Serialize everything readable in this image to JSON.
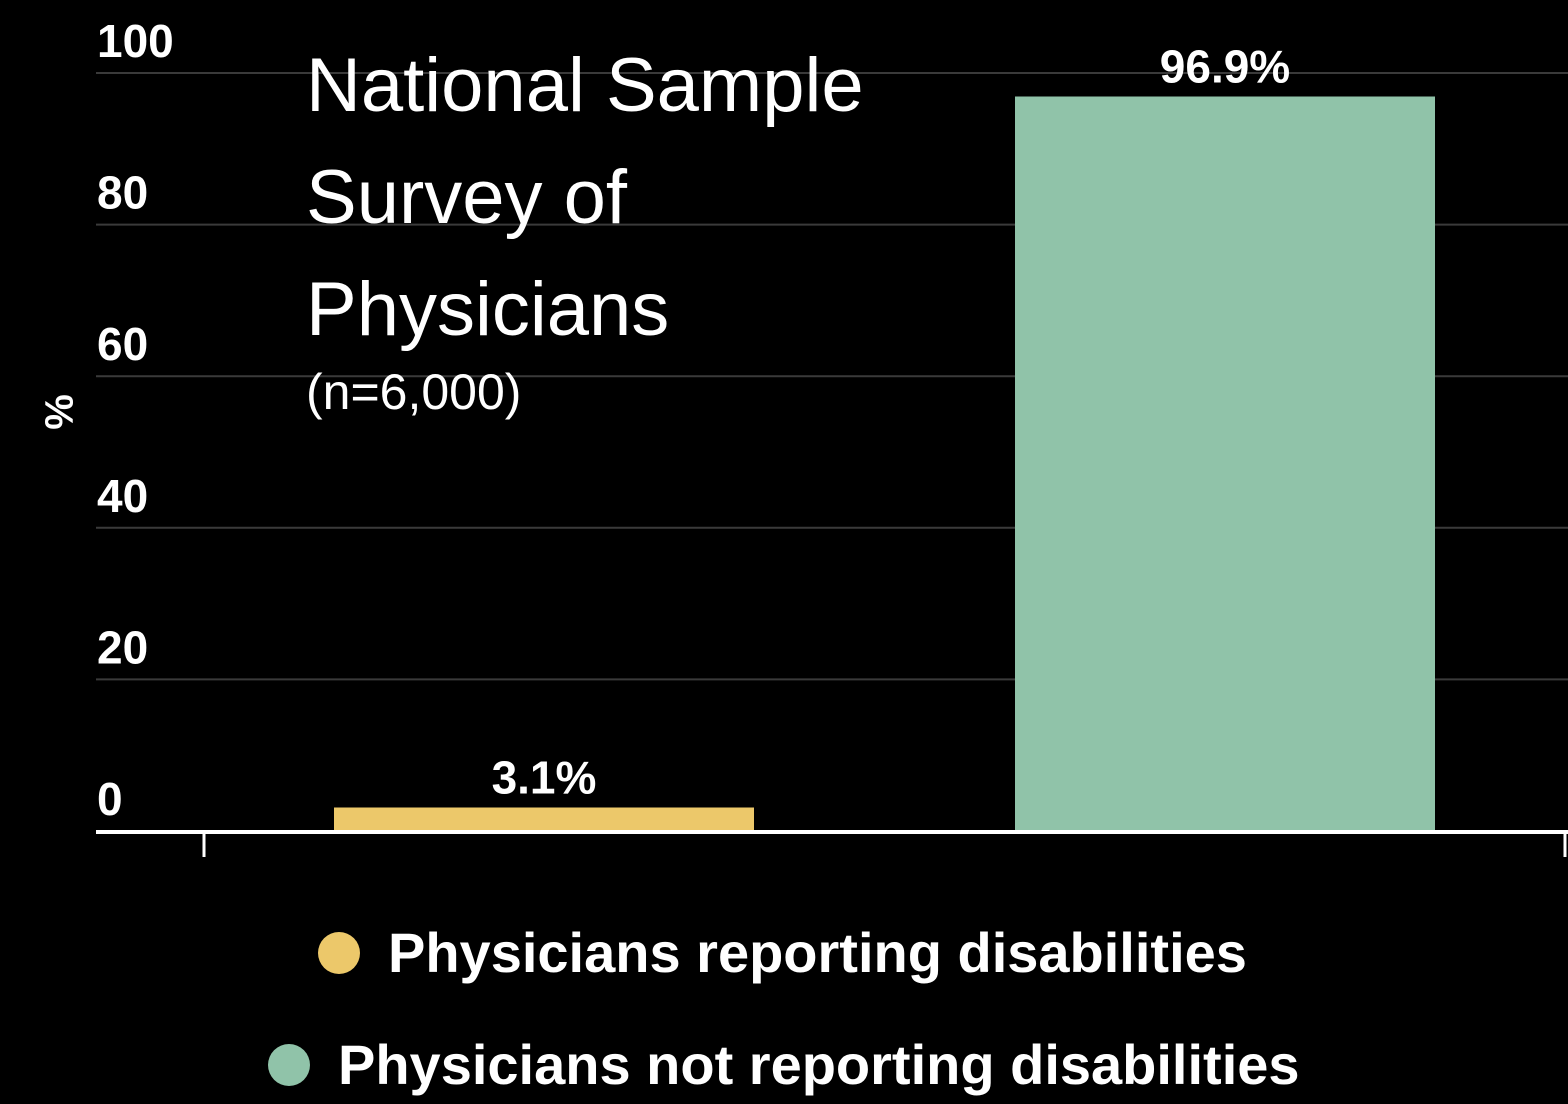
{
  "chart_data": {
    "type": "bar",
    "title_lines": [
      "National Sample",
      "Survey of",
      "Physicians"
    ],
    "subtitle": "(n=6,000)",
    "xlabel": "",
    "ylabel": "%",
    "ylim": [
      0,
      100
    ],
    "yticks": [
      0,
      20,
      40,
      60,
      80,
      100
    ],
    "ytick_labels": [
      "0",
      "20",
      "40",
      "60",
      "80",
      "100"
    ],
    "grid": true,
    "legend_position": "bottom",
    "categories": [
      "Physicians reporting disabilities",
      "Physicians not reporting disabilities"
    ],
    "values": [
      3.1,
      96.9
    ],
    "value_labels": [
      "3.1%",
      "96.9%"
    ],
    "colors": [
      "#ECC86A",
      "#90C3A9"
    ],
    "series": [
      {
        "name": "Physicians reporting disabilities",
        "color": "#ECC86A"
      },
      {
        "name": "Physicians not reporting disabilities",
        "color": "#90C3A9"
      }
    ]
  },
  "theme": {
    "background": "#000000",
    "text": "#ffffff",
    "grid": "#3a3a3a",
    "axis": "#ffffff"
  }
}
